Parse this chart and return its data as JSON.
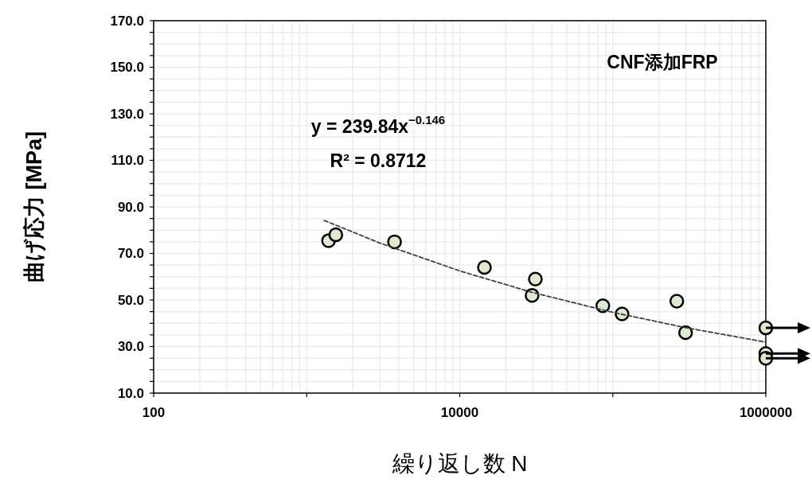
{
  "chart_data": {
    "type": "scatter",
    "xlabel": "繰り返し数 N",
    "ylabel": "曲げ応力 [MPa]",
    "log": "x",
    "xlim": [
      100,
      1000000
    ],
    "xticks": [
      100,
      {
        "value": 1000,
        "label": null
      },
      10000,
      {
        "value": 100000,
        "label": null
      },
      1000000
    ],
    "ylim": [
      10,
      170
    ],
    "yticks": [
      {
        "value": 10,
        "label": "10.0"
      },
      {
        "value": 30,
        "label": "30.0"
      },
      {
        "value": 50,
        "label": "50.0"
      },
      {
        "value": 70,
        "label": "70.0"
      },
      {
        "value": 90,
        "label": "90.0"
      },
      {
        "value": 110,
        "label": "110.0"
      },
      {
        "value": 130,
        "label": "130.0"
      },
      {
        "value": 150,
        "label": "150.0"
      },
      {
        "value": 170,
        "label": "170.0"
      }
    ],
    "grid": true,
    "marker": "circle",
    "annotations": [
      "CNF添加FRP",
      "y = 239.84x$^{−0.146}$",
      "R² = 0.8712"
    ],
    "series": [
      {
        "type": "scatter",
        "color": "#dcebd0",
        "x": [
          1390,
          1550,
          3750,
          14500,
          31200,
          29700,
          86100,
          115000,
          262000,
          299000,
          1000000,
          1000000,
          1000000
        ],
        "values": [
          75.5,
          78,
          75,
          64,
          59,
          52,
          47.5,
          44,
          49.5,
          36,
          38,
          27,
          25
        ]
      },
      {
        "type": "line",
        "color": "#404040",
        "line_style": "dashed",
        "marker": "none",
        "x": [
          1300,
          3000,
          10000,
          30000,
          100000,
          300000,
          1000000
        ],
        "values": [
          84.2,
          74.5,
          62.5,
          53.2,
          44.7,
          38.1,
          31.9
        ]
      }
    ]
  }
}
